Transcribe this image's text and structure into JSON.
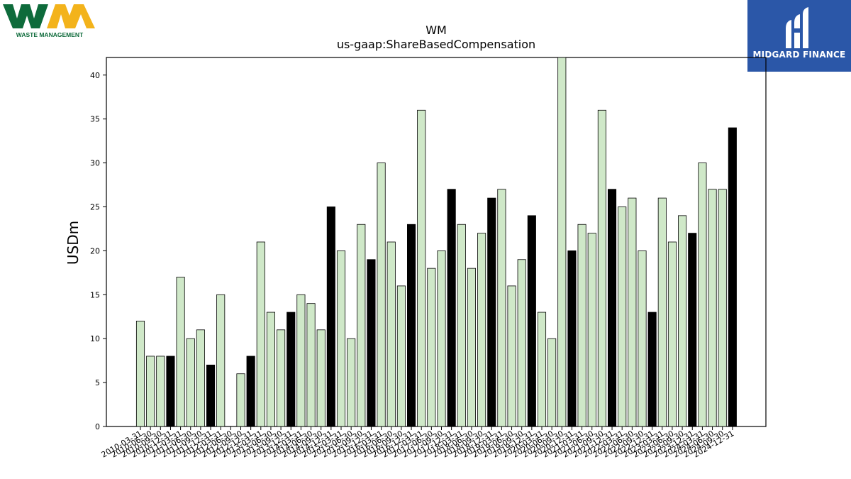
{
  "logos": {
    "company_text": "WASTE MANAGEMENT",
    "brand_text": "MIDGARD FINANCE"
  },
  "colors": {
    "bar_light": "#cfe8c8",
    "bar_dark": "#000000",
    "wm_green": "#0e6b3b",
    "wm_yellow": "#f3b31b",
    "midgard_blue": "#2b57a8"
  },
  "chart_data": {
    "type": "bar",
    "title": "WM",
    "subtitle": "us-gaap:ShareBasedCompensation",
    "ylabel": "USDm",
    "xlabel": "",
    "ylim": [
      0,
      42
    ],
    "yticks": [
      0,
      5,
      10,
      15,
      20,
      25,
      30,
      35,
      40
    ],
    "grid": false,
    "categories": [
      "2010-03-31",
      "2010-06-30",
      "2010-09-30",
      "2010-12-31",
      "2011-03-31",
      "2011-06-30",
      "2011-09-30",
      "2011-12-31",
      "2012-03-31",
      "2012-06-30",
      "2012-09-30",
      "2012-12-31",
      "2013-03-31",
      "2013-06-30",
      "2013-09-30",
      "2013-12-31",
      "2014-03-31",
      "2014-06-30",
      "2014-09-30",
      "2014-12-31",
      "2015-03-31",
      "2015-06-30",
      "2015-09-30",
      "2015-12-31",
      "2016-03-31",
      "2016-06-30",
      "2016-09-30",
      "2016-12-31",
      "2017-03-31",
      "2017-06-30",
      "2017-09-30",
      "2017-12-31",
      "2018-03-31",
      "2018-06-30",
      "2018-09-30",
      "2018-12-31",
      "2019-03-31",
      "2019-06-30",
      "2019-09-30",
      "2019-12-31",
      "2020-03-31",
      "2020-06-30",
      "2020-09-30",
      "2020-12-31",
      "2021-03-31",
      "2021-06-30",
      "2021-09-30",
      "2021-12-31",
      "2022-03-31",
      "2022-06-30",
      "2022-09-30",
      "2022-12-31",
      "2023-03-31",
      "2023-06-30",
      "2023-09-30",
      "2023-12-31",
      "2024-03-31",
      "2024-06-30",
      "2024-09-30",
      "2024-12-31"
    ],
    "values": [
      12,
      8,
      8,
      8,
      17,
      10,
      11,
      7,
      15,
      0,
      6,
      8,
      21,
      13,
      11,
      13,
      15,
      14,
      11,
      25,
      20,
      10,
      23,
      19,
      30,
      21,
      16,
      23,
      36,
      18,
      20,
      27,
      23,
      18,
      22,
      26,
      27,
      16,
      19,
      24,
      13,
      10,
      42,
      20,
      23,
      22,
      36,
      27,
      25,
      26,
      20,
      13,
      26,
      21,
      24,
      22,
      30,
      27,
      27,
      34
    ],
    "highlight_q4": [
      false,
      false,
      false,
      true,
      false,
      false,
      false,
      true,
      false,
      false,
      false,
      true,
      false,
      false,
      false,
      true,
      false,
      false,
      false,
      true,
      false,
      false,
      false,
      true,
      false,
      false,
      false,
      true,
      false,
      false,
      false,
      true,
      false,
      false,
      false,
      true,
      false,
      false,
      false,
      true,
      false,
      false,
      false,
      true,
      false,
      false,
      false,
      true,
      false,
      false,
      false,
      true,
      false,
      false,
      false,
      true,
      false,
      false,
      false,
      true
    ],
    "tick_labels": [
      "2010-03-31",
      "2010-06-30",
      "2010-09-30",
      "2010-12-31",
      "2011-03-31",
      "2011-06-30",
      "2011-09-30",
      "2011-12-31",
      "2012-03-31",
      "2012-06-30",
      "2012-09-30",
      "2012-12-31",
      "2013-03-31",
      "2013-06-30",
      "2013-09-30",
      "2013-12-31",
      "2014-03-31",
      "2014-06-30",
      "2014-09-30",
      "2014-12-31",
      "2015-03-31",
      "2015-06-30",
      "2015-09-30",
      "2015-12-31",
      "2016-03-31",
      "2016-06-30",
      "2016-09-30",
      "2016-12-31",
      "2017-03-31",
      "2017-06-30",
      "2017-09-30",
      "2017-12-31",
      "2018-03-31",
      "2018-06-30",
      "2018-09-30",
      "2018-12-31",
      "2019-03-31",
      "2019-06-30",
      "2019-09-30",
      "2019-12-31",
      "2020-03-31",
      "2020-06-30",
      "2020-09-30",
      "2020-12-31",
      "2021-03-31",
      "2021-06-30",
      "2021-09-30",
      "2021-12-31",
      "2022-03-31",
      "2022-06-30",
      "2022-09-30",
      "2022-12-31",
      "2023-03-31",
      "2023-06-30",
      "2023-09-30",
      "2023-12-31",
      "2024-03-31",
      "2024-06-30",
      "2024-09-30",
      "2024-12-31"
    ]
  }
}
